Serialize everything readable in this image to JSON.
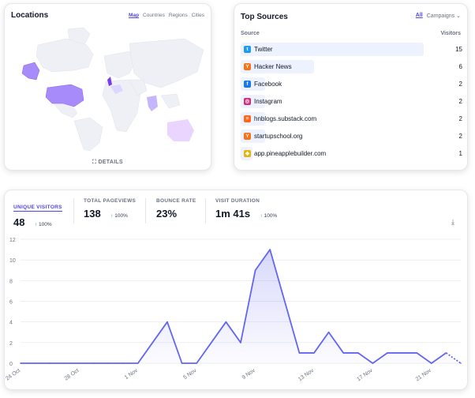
{
  "locations": {
    "title": "Locations",
    "tabs": [
      "Map",
      "Countries",
      "Regions",
      "Cities"
    ],
    "active_tab": "Map",
    "details_label": "DETAILS"
  },
  "top_sources": {
    "title": "Top Sources",
    "tabs": [
      "All",
      "Campaigns"
    ],
    "column_source": "Source",
    "column_visitors": "Visitors",
    "rows": [
      {
        "name": "Twitter",
        "visitors": 15,
        "icon": "twitter-icon",
        "color": "#1d9bf0"
      },
      {
        "name": "Hacker News",
        "visitors": 6,
        "icon": "hacker-news-icon",
        "color": "#f97316"
      },
      {
        "name": "Facebook",
        "visitors": 2,
        "icon": "facebook-icon",
        "color": "#1877f2"
      },
      {
        "name": "Instagram",
        "visitors": 2,
        "icon": "instagram-icon",
        "color": "#d62976"
      },
      {
        "name": "hnblogs.substack.com",
        "visitors": 2,
        "icon": "substack-icon",
        "color": "#ff6719"
      },
      {
        "name": "startupschool.org",
        "visitors": 2,
        "icon": "startupschool-icon",
        "color": "#f97316"
      },
      {
        "name": "app.pineapplebuilder.com",
        "visitors": 1,
        "icon": "pineapple-icon",
        "color": "#eab308"
      }
    ]
  },
  "metrics": [
    {
      "label": "UNIQUE VISITORS",
      "value": "48",
      "change": "100%",
      "active": true
    },
    {
      "label": "TOTAL PAGEVIEWS",
      "value": "138",
      "change": "100%",
      "active": false
    },
    {
      "label": "BOUNCE RATE",
      "value": "23%",
      "change": "",
      "active": false
    },
    {
      "label": "VISIT DURATION",
      "value": "1m 41s",
      "change": "100%",
      "active": false
    }
  ],
  "chart_data": {
    "type": "area",
    "title": "",
    "xlabel": "",
    "ylabel": "",
    "ylim": [
      0,
      12
    ],
    "yticks": [
      0,
      2,
      4,
      6,
      8,
      10,
      12
    ],
    "x_tick_labels": [
      "24 Oct",
      "28 Oct",
      "1 Nov",
      "5 Nov",
      "9 Nov",
      "13 Nov",
      "17 Nov",
      "21 Nov"
    ],
    "x_tick_indices": [
      0,
      4,
      8,
      12,
      16,
      20,
      24,
      28
    ],
    "series": [
      {
        "name": "Unique visitors",
        "values": [
          0,
          0,
          0,
          0,
          0,
          0,
          0,
          0,
          0,
          2,
          4,
          0,
          0,
          2,
          4,
          2,
          9,
          11,
          6,
          1,
          1,
          3,
          1,
          1,
          0,
          1,
          1,
          1,
          0,
          1,
          0
        ]
      }
    ],
    "dotted_from_index": 29,
    "color": "#6366f1"
  }
}
